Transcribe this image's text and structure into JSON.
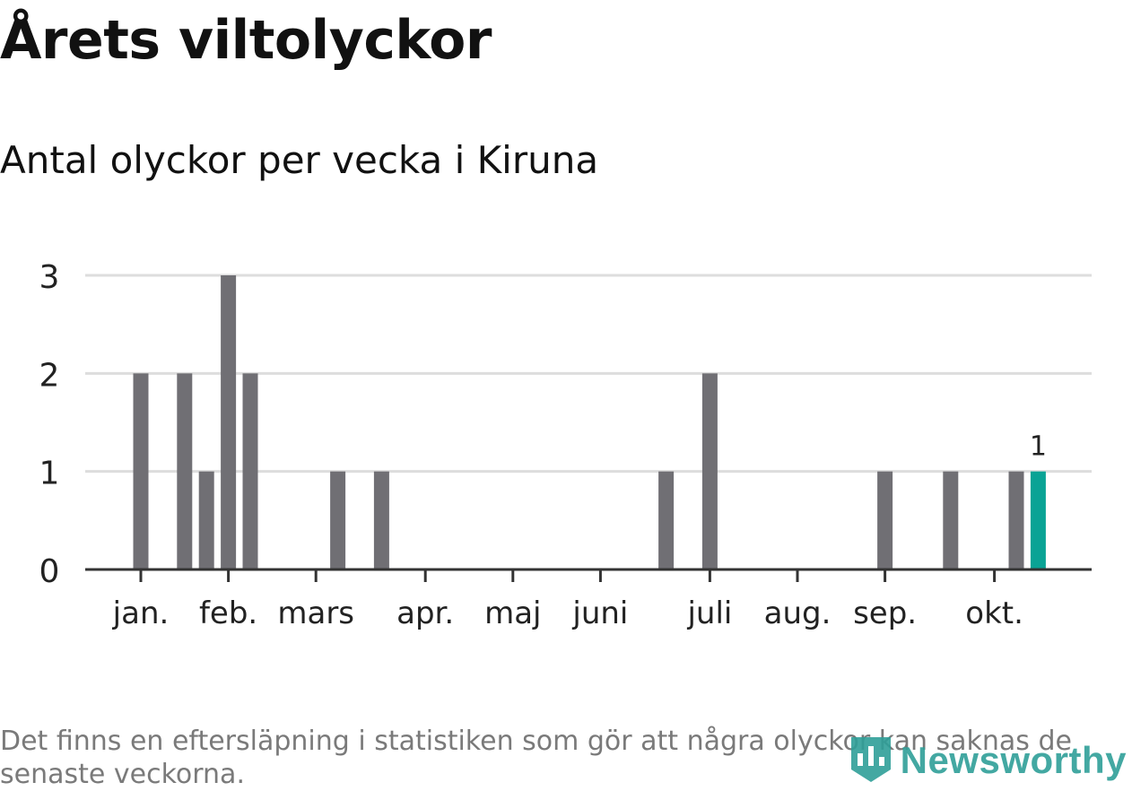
{
  "header": {
    "title": "Årets viltolyckor",
    "subtitle": "Antal olyckor per vecka i Kiruna"
  },
  "footnote": "Det finns en eftersläpning i statistiken som gör att några olyckor kan saknas de senaste veckorna.",
  "brand": {
    "name": "Newsworthy",
    "icon": "bar-chart-shield-icon",
    "color": "#2f9f98"
  },
  "chart_data": {
    "type": "bar",
    "title": "Årets viltolyckor",
    "subtitle": "Antal olyckor per vecka i Kiruna",
    "ylim": [
      0,
      3
    ],
    "yticks": [
      0,
      1,
      2,
      3
    ],
    "grid": true,
    "month_labels": [
      "jan.",
      "feb.",
      "mars",
      "apr.",
      "maj",
      "juni",
      "juli",
      "aug.",
      "sep.",
      "okt."
    ],
    "month_start_weeks": [
      1,
      5,
      9,
      14,
      18,
      22,
      27,
      31,
      35,
      40
    ],
    "weeks": [
      1,
      2,
      3,
      4,
      5,
      6,
      7,
      8,
      9,
      10,
      11,
      12,
      13,
      14,
      15,
      16,
      17,
      18,
      19,
      20,
      21,
      22,
      23,
      24,
      25,
      26,
      27,
      28,
      29,
      30,
      31,
      32,
      33,
      34,
      35,
      36,
      37,
      38,
      39,
      40,
      41,
      42
    ],
    "values": [
      2,
      0,
      2,
      1,
      3,
      2,
      0,
      0,
      0,
      1,
      0,
      1,
      0,
      0,
      0,
      0,
      0,
      0,
      0,
      0,
      0,
      0,
      0,
      0,
      1,
      0,
      2,
      0,
      0,
      0,
      0,
      0,
      0,
      0,
      1,
      0,
      0,
      1,
      0,
      0,
      1,
      1
    ],
    "highlight_last": true,
    "highlight_label": "1",
    "colors": {
      "bar": "#706f74",
      "highlight": "#0aa395",
      "grid": "#dddddd",
      "axis": "#333333"
    }
  }
}
